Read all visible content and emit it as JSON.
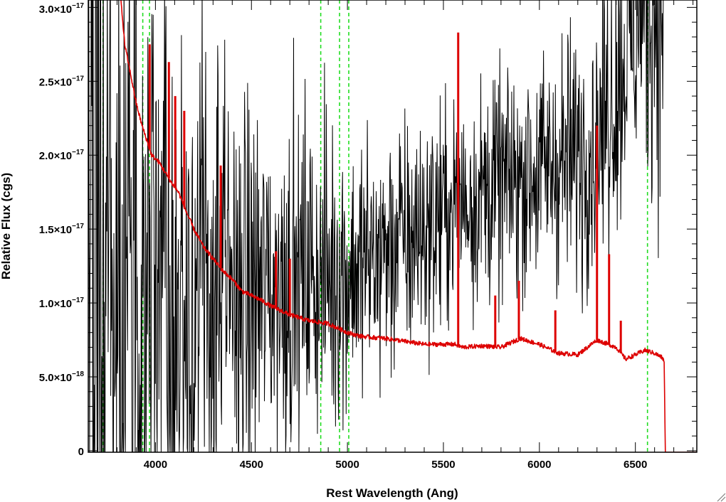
{
  "chart_data": {
    "type": "line",
    "title": "",
    "xlabel": "Rest Wavelength (Ang)",
    "ylabel": "Relative Flux (cgs)",
    "xlim": [
      3650,
      6820
    ],
    "ylim": [
      -1e-19,
      3.05e-17
    ],
    "x_ticks": [
      {
        "value": 4000,
        "label": "4000"
      },
      {
        "value": 4500,
        "label": "4500"
      },
      {
        "value": 5000,
        "label": "5000"
      },
      {
        "value": 5500,
        "label": "5500"
      },
      {
        "value": 6000,
        "label": "6000"
      },
      {
        "value": 6500,
        "label": "6500"
      }
    ],
    "y_ticks": [
      {
        "value": 0,
        "mantissa": "0",
        "exponent": ""
      },
      {
        "value": 5e-18,
        "mantissa": "5.0×10",
        "exponent": "−18"
      },
      {
        "value": 1e-17,
        "mantissa": "1.0×10",
        "exponent": "−17"
      },
      {
        "value": 1.5e-17,
        "mantissa": "1.5×10",
        "exponent": "−17"
      },
      {
        "value": 2e-17,
        "mantissa": "2.0×10",
        "exponent": "−17"
      },
      {
        "value": 2.5e-17,
        "mantissa": "2.5×10",
        "exponent": "−17"
      },
      {
        "value": 3e-17,
        "mantissa": "3.0×10",
        "exponent": "−17"
      }
    ],
    "grid": false,
    "legend": "none",
    "vlines": {
      "color": "#22dd22",
      "style": "dashed",
      "x": [
        3727,
        3934,
        3969,
        4861,
        4959,
        5007,
        6563
      ]
    },
    "series": [
      {
        "color": "#000000",
        "style": "noisy-line",
        "anchors_x": [
          3650,
          3800,
          4000,
          4200,
          4400,
          4600,
          4800,
          5000,
          5200,
          5400,
          5500,
          5600,
          5800,
          6000,
          6200,
          6300,
          6400,
          6500,
          6600,
          6650
        ],
        "anchors_y": [
          1.2e-17,
          1.1e-17,
          1.05e-17,
          1e-17,
          1.05e-17,
          1.1e-17,
          1.2e-17,
          1.2e-17,
          1.35e-17,
          1.5e-17,
          1.6e-17,
          1.7e-17,
          1.8e-17,
          1.9e-17,
          2e-17,
          2.1e-17,
          2.5e-17,
          2.9e-17,
          3e-17,
          3e-17
        ],
        "noise_x": [
          3650,
          3900,
          4300,
          4600,
          5000,
          5500,
          6000,
          6300,
          6600
        ],
        "noise_y": [
          3.5e-17,
          2.5e-17,
          1.5e-17,
          1e-17,
          8e-18,
          6.5e-18,
          6.5e-18,
          8e-18,
          1e-17
        ]
      },
      {
        "color": "#dd0000",
        "style": "line",
        "x": [
          3820,
          3840,
          3870,
          3900,
          3930,
          3960,
          3980,
          4020,
          4080,
          4120,
          4160,
          4200,
          4250,
          4300,
          4350,
          4400,
          4450,
          4500,
          4550,
          4600,
          4700,
          4800,
          4900,
          5000,
          5050,
          5100,
          5200,
          5300,
          5400,
          5500,
          5560,
          5600,
          5700,
          5800,
          5900,
          6000,
          6100,
          6200,
          6300,
          6400,
          6450,
          6500,
          6550,
          6600,
          6640,
          6650,
          6656,
          6820
        ],
        "y": [
          3.05e-17,
          2.75e-17,
          2.55e-17,
          2.35e-17,
          2.2e-17,
          2.08e-17,
          2e-17,
          1.95e-17,
          1.82e-17,
          1.75e-17,
          1.62e-17,
          1.5e-17,
          1.38e-17,
          1.3e-17,
          1.22e-17,
          1.16e-17,
          1.08e-17,
          1.05e-17,
          1.02e-17,
          9.8e-18,
          9.2e-18,
          8.8e-18,
          8.6e-18,
          8e-18,
          7.8e-18,
          7.7e-18,
          7.6e-18,
          7.4e-18,
          7.2e-18,
          7.2e-18,
          7.2e-18,
          7e-18,
          7.1e-18,
          7e-18,
          7.6e-18,
          7.2e-18,
          6.6e-18,
          6.5e-18,
          7.5e-18,
          7e-18,
          6.2e-18,
          6.5e-18,
          6.8e-18,
          6.6e-18,
          6.3e-18,
          6e-18,
          -1e-19,
          -1e-19
        ],
        "emission_lines": [
          {
            "x": 3970,
            "peak": 2.75e-17
          },
          {
            "x": 4070,
            "peak": 2.63e-17
          },
          {
            "x": 4103,
            "peak": 2.4e-17
          },
          {
            "x": 4150,
            "peak": 2.3e-17
          },
          {
            "x": 4340,
            "peak": 1.93e-17
          },
          {
            "x": 4628,
            "peak": 1.35e-17
          },
          {
            "x": 4700,
            "peak": 1.3e-17
          },
          {
            "x": 5577,
            "peak": 2.83e-17
          },
          {
            "x": 5770,
            "peak": 1.05e-17
          },
          {
            "x": 5893,
            "peak": 1.15e-17
          },
          {
            "x": 6083,
            "peak": 9.5e-18
          },
          {
            "x": 6300,
            "peak": 2.2e-17
          },
          {
            "x": 6363,
            "peak": 1.33e-17
          },
          {
            "x": 6424,
            "peak": 8.8e-18
          }
        ]
      }
    ]
  }
}
